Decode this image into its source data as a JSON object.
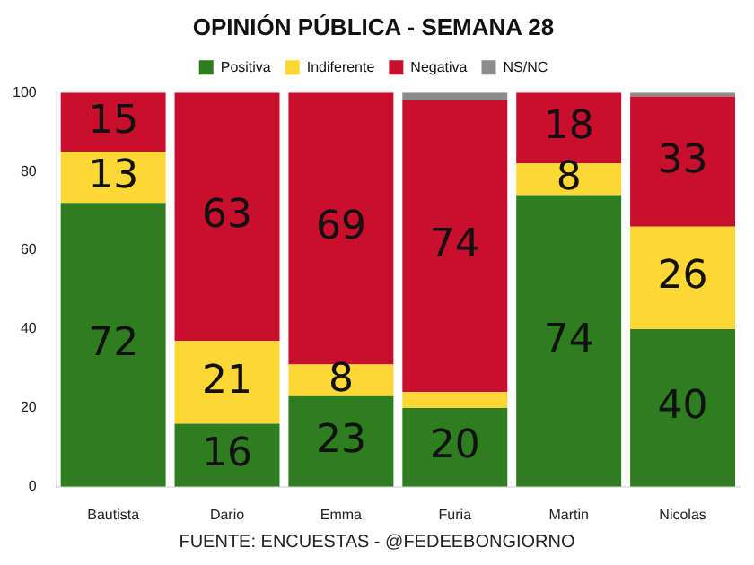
{
  "chart_data": {
    "type": "bar",
    "title": "OPINIÓN PÚBLICA - SEMANA 28",
    "categories": [
      "Bautista",
      "Dario",
      "Emma",
      "Furia",
      "Martin",
      "Nicolas"
    ],
    "stacked": true,
    "legend": "top",
    "ylim": [
      0,
      100
    ],
    "yticks": [
      0,
      20,
      40,
      60,
      80,
      100
    ],
    "grid": false,
    "series": [
      {
        "name": "Positiva",
        "color": "#2e7d1f",
        "values": [
          72,
          16,
          23,
          20,
          74,
          40
        ],
        "value_labels": [
          "72",
          "16",
          "23",
          "20",
          "74",
          "40"
        ]
      },
      {
        "name": "Indiferente",
        "color": "#fdd835",
        "values": [
          13,
          21,
          8,
          4,
          8,
          26
        ],
        "value_labels": [
          "13",
          "21",
          "8",
          null,
          "8",
          "26"
        ]
      },
      {
        "name": "Negativa",
        "color": "#c8102e",
        "values": [
          15,
          63,
          69,
          74,
          18,
          33
        ],
        "value_labels": [
          "15",
          "63",
          "69",
          "74",
          "18",
          "33"
        ]
      },
      {
        "name": "NS/NC",
        "color": "#8c8c8c",
        "values": [
          0,
          0,
          0,
          2,
          0,
          1
        ]
      }
    ],
    "annotations": [
      "FUENTE: ENCUESTAS - @FEDEEBONGIORNO"
    ]
  }
}
